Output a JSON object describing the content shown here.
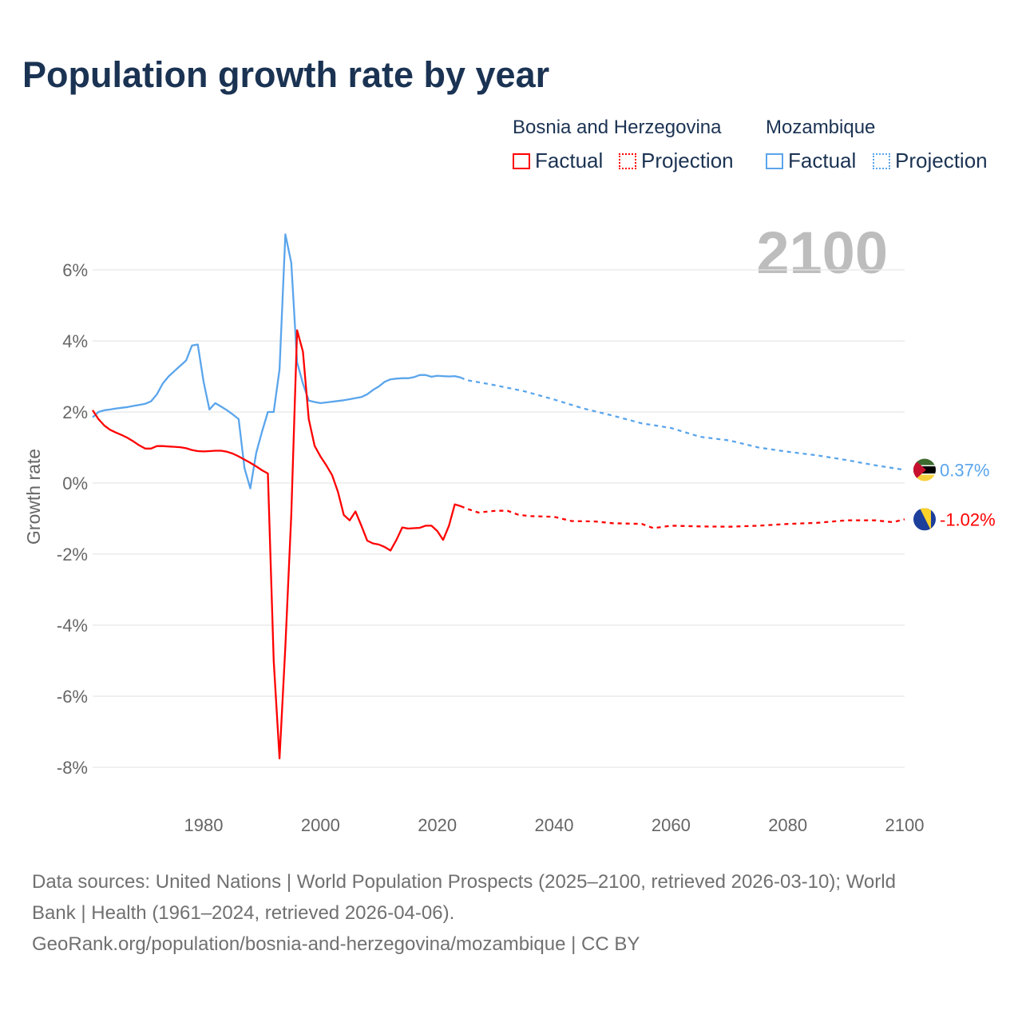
{
  "title": "Population growth rate by year",
  "legend": {
    "groups": [
      {
        "name": "Bosnia and Herzegovina",
        "factual": "Factual",
        "projection": "Projection",
        "color": "#ff0000"
      },
      {
        "name": "Mozambique",
        "factual": "Factual",
        "projection": "Projection",
        "color": "#5aa5ec"
      }
    ]
  },
  "year_badge": "2100",
  "footer": {
    "line1": "Data sources: United Nations | World Population Prospects (2025–2100, retrieved 2026-03-10); World",
    "line2": "Bank | Health (1961–2024, retrieved 2026-04-06).",
    "line3": "GeoRank.org/population/bosnia-and-herzegovina/mozambique | CC BY"
  },
  "chart_data": {
    "type": "line",
    "title": "Population growth rate by year",
    "xlabel": "",
    "ylabel": "Growth rate",
    "xlim": [
      1961,
      2100
    ],
    "ylim": [
      -8,
      7
    ],
    "xticks": [
      "1980",
      "2000",
      "2020",
      "2040",
      "2060",
      "2080",
      "2100"
    ],
    "yticks": [
      "6%",
      "4%",
      "2%",
      "0%",
      "-2%",
      "-4%",
      "-6%",
      "-8%"
    ],
    "grid": true,
    "series": [
      {
        "name": "Mozambique",
        "color": "#5aa5ec",
        "end_label": "0.37%",
        "flag": "mozambique-flag",
        "factual": [
          [
            1961,
            1.85
          ],
          [
            1962,
            2.0
          ],
          [
            1963,
            2.05
          ],
          [
            1964,
            2.07
          ],
          [
            1965,
            2.1
          ],
          [
            1966,
            2.12
          ],
          [
            1967,
            2.14
          ],
          [
            1968,
            2.17
          ],
          [
            1969,
            2.2
          ],
          [
            1970,
            2.23
          ],
          [
            1971,
            2.3
          ],
          [
            1972,
            2.5
          ],
          [
            1973,
            2.8
          ],
          [
            1974,
            3.0
          ],
          [
            1975,
            3.15
          ],
          [
            1976,
            3.3
          ],
          [
            1977,
            3.45
          ],
          [
            1978,
            3.87
          ],
          [
            1979,
            3.9
          ],
          [
            1980,
            2.85
          ],
          [
            1981,
            2.07
          ],
          [
            1982,
            2.25
          ],
          [
            1983,
            2.15
          ],
          [
            1984,
            2.05
          ],
          [
            1985,
            1.93
          ],
          [
            1986,
            1.8
          ],
          [
            1987,
            0.42
          ],
          [
            1988,
            -0.15
          ],
          [
            1989,
            0.85
          ],
          [
            1990,
            1.45
          ],
          [
            1991,
            2.0
          ],
          [
            1992,
            2.0
          ],
          [
            1993,
            3.2
          ],
          [
            1994,
            7.0
          ],
          [
            1995,
            6.2
          ],
          [
            1996,
            3.4
          ],
          [
            1997,
            2.8
          ],
          [
            1998,
            2.32
          ],
          [
            1999,
            2.28
          ],
          [
            2000,
            2.25
          ],
          [
            2001,
            2.27
          ],
          [
            2002,
            2.29
          ],
          [
            2003,
            2.31
          ],
          [
            2004,
            2.33
          ],
          [
            2005,
            2.36
          ],
          [
            2006,
            2.39
          ],
          [
            2007,
            2.42
          ],
          [
            2008,
            2.5
          ],
          [
            2009,
            2.62
          ],
          [
            2010,
            2.72
          ],
          [
            2011,
            2.85
          ],
          [
            2012,
            2.92
          ],
          [
            2013,
            2.94
          ],
          [
            2014,
            2.95
          ],
          [
            2015,
            2.95
          ],
          [
            2016,
            2.98
          ],
          [
            2017,
            3.04
          ],
          [
            2018,
            3.04
          ],
          [
            2019,
            2.99
          ],
          [
            2020,
            3.02
          ],
          [
            2021,
            3.01
          ],
          [
            2022,
            3.0
          ],
          [
            2023,
            3.01
          ],
          [
            2024,
            2.97
          ]
        ],
        "projection": [
          [
            2024,
            2.97
          ],
          [
            2025,
            2.9
          ],
          [
            2030,
            2.75
          ],
          [
            2035,
            2.58
          ],
          [
            2040,
            2.35
          ],
          [
            2045,
            2.1
          ],
          [
            2050,
            1.9
          ],
          [
            2055,
            1.68
          ],
          [
            2060,
            1.55
          ],
          [
            2065,
            1.3
          ],
          [
            2070,
            1.2
          ],
          [
            2075,
            1.0
          ],
          [
            2080,
            0.88
          ],
          [
            2085,
            0.78
          ],
          [
            2090,
            0.65
          ],
          [
            2095,
            0.5
          ],
          [
            2100,
            0.37
          ]
        ]
      },
      {
        "name": "Bosnia and Herzegovina",
        "color": "#ff0000",
        "end_label": "-1.02%",
        "flag": "bosnia-flag",
        "factual": [
          [
            1961,
            2.05
          ],
          [
            1962,
            1.8
          ],
          [
            1963,
            1.62
          ],
          [
            1964,
            1.5
          ],
          [
            1965,
            1.42
          ],
          [
            1966,
            1.35
          ],
          [
            1967,
            1.27
          ],
          [
            1968,
            1.17
          ],
          [
            1969,
            1.06
          ],
          [
            1970,
            0.97
          ],
          [
            1971,
            0.97
          ],
          [
            1972,
            1.04
          ],
          [
            1973,
            1.04
          ],
          [
            1974,
            1.03
          ],
          [
            1975,
            1.02
          ],
          [
            1976,
            1.01
          ],
          [
            1977,
            0.98
          ],
          [
            1978,
            0.93
          ],
          [
            1979,
            0.9
          ],
          [
            1980,
            0.89
          ],
          [
            1981,
            0.9
          ],
          [
            1982,
            0.91
          ],
          [
            1983,
            0.91
          ],
          [
            1984,
            0.88
          ],
          [
            1985,
            0.83
          ],
          [
            1986,
            0.75
          ],
          [
            1987,
            0.66
          ],
          [
            1988,
            0.57
          ],
          [
            1989,
            0.47
          ],
          [
            1990,
            0.36
          ],
          [
            1991,
            0.27
          ],
          [
            1992,
            -5.0
          ],
          [
            1993,
            -7.75
          ],
          [
            1994,
            -4.6
          ],
          [
            1995,
            -0.9
          ],
          [
            1996,
            4.3
          ],
          [
            1997,
            3.7
          ],
          [
            1998,
            1.8
          ],
          [
            1999,
            1.05
          ],
          [
            2000,
            0.75
          ],
          [
            2001,
            0.5
          ],
          [
            2002,
            0.22
          ],
          [
            2003,
            -0.25
          ],
          [
            2004,
            -0.9
          ],
          [
            2005,
            -1.05
          ],
          [
            2006,
            -0.8
          ],
          [
            2007,
            -1.2
          ],
          [
            2008,
            -1.62
          ],
          [
            2009,
            -1.7
          ],
          [
            2010,
            -1.73
          ],
          [
            2011,
            -1.8
          ],
          [
            2012,
            -1.9
          ],
          [
            2013,
            -1.6
          ],
          [
            2014,
            -1.25
          ],
          [
            2015,
            -1.28
          ],
          [
            2016,
            -1.27
          ],
          [
            2017,
            -1.26
          ],
          [
            2018,
            -1.2
          ],
          [
            2019,
            -1.2
          ],
          [
            2020,
            -1.35
          ],
          [
            2021,
            -1.6
          ],
          [
            2022,
            -1.2
          ],
          [
            2023,
            -0.6
          ],
          [
            2024,
            -0.65
          ]
        ],
        "projection": [
          [
            2024,
            -0.65
          ],
          [
            2025,
            -0.72
          ],
          [
            2027,
            -0.83
          ],
          [
            2030,
            -0.78
          ],
          [
            2032,
            -0.78
          ],
          [
            2034,
            -0.9
          ],
          [
            2036,
            -0.93
          ],
          [
            2040,
            -0.95
          ],
          [
            2043,
            -1.07
          ],
          [
            2047,
            -1.08
          ],
          [
            2050,
            -1.13
          ],
          [
            2055,
            -1.15
          ],
          [
            2057,
            -1.27
          ],
          [
            2060,
            -1.2
          ],
          [
            2065,
            -1.22
          ],
          [
            2070,
            -1.23
          ],
          [
            2075,
            -1.2
          ],
          [
            2080,
            -1.15
          ],
          [
            2085,
            -1.12
          ],
          [
            2090,
            -1.05
          ],
          [
            2095,
            -1.05
          ],
          [
            2098,
            -1.1
          ],
          [
            2100,
            -1.02
          ]
        ]
      }
    ]
  }
}
